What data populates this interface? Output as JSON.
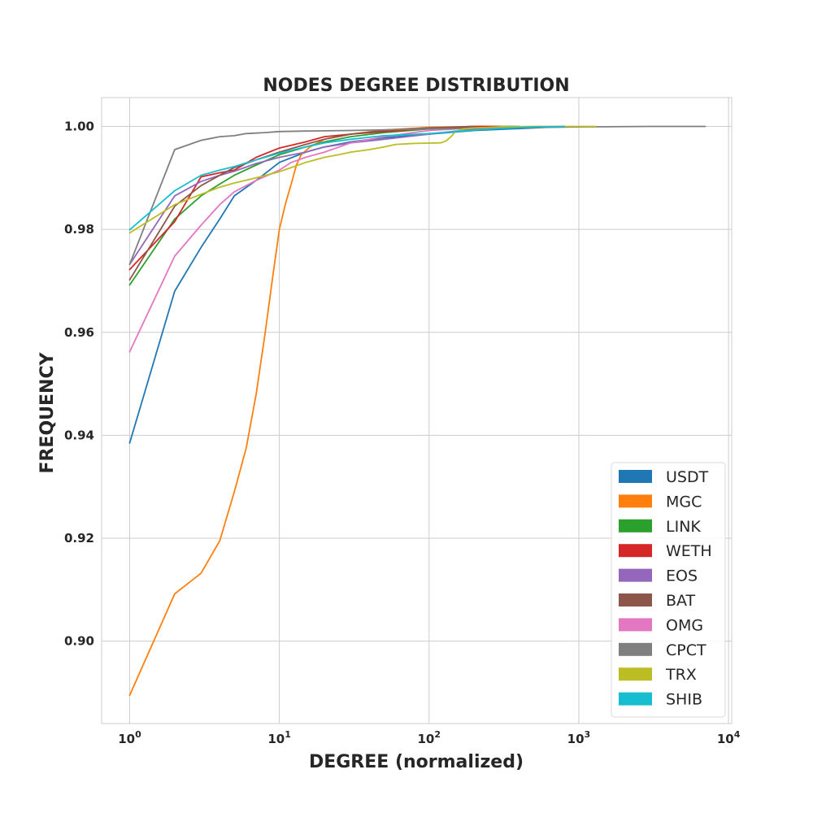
{
  "chart_data": {
    "type": "line",
    "title": "NODES DEGREE DISTRIBUTION",
    "xlabel": "DEGREE (normalized)",
    "ylabel": "FREQUENCY",
    "xscale": "log",
    "xlim": [
      0.65,
      10500
    ],
    "ylim": [
      0.884,
      1.0056
    ],
    "xticks": [
      1,
      10,
      100,
      1000,
      10000
    ],
    "xtick_labels": [
      {
        "base": "10",
        "exp": "0"
      },
      {
        "base": "10",
        "exp": "1"
      },
      {
        "base": "10",
        "exp": "2"
      },
      {
        "base": "10",
        "exp": "3"
      },
      {
        "base": "10",
        "exp": "4"
      }
    ],
    "yticks": [
      0.9,
      0.92,
      0.94,
      0.96,
      0.98,
      1.0
    ],
    "ytick_labels": [
      "0.90",
      "0.92",
      "0.94",
      "0.96",
      "0.98",
      "1.00"
    ],
    "grid": true,
    "legend_position": "lower-right",
    "series": [
      {
        "name": "USDT",
        "color": "#1f77b4",
        "x": [
          1,
          2,
          3,
          4,
          5,
          7,
          10,
          15,
          20,
          30,
          50,
          100,
          200,
          500,
          800
        ],
        "y": [
          0.9385,
          0.968,
          0.9765,
          0.982,
          0.9865,
          0.9895,
          0.993,
          0.995,
          0.996,
          0.997,
          0.9978,
          0.9985,
          0.9992,
          0.9997,
          1.0
        ]
      },
      {
        "name": "MGC",
        "color": "#ff7f0e",
        "x": [
          1,
          2,
          3,
          4,
          5,
          6,
          7,
          8,
          9,
          10,
          11,
          12,
          13,
          14,
          16,
          20,
          30,
          50,
          100,
          200,
          400
        ],
        "y": [
          0.8895,
          0.9092,
          0.9132,
          0.9195,
          0.929,
          0.9375,
          0.948,
          0.9595,
          0.9705,
          0.98,
          0.985,
          0.9888,
          0.9925,
          0.9945,
          0.996,
          0.9975,
          0.9985,
          0.9993,
          0.9998,
          1.0,
          1.0
        ]
      },
      {
        "name": "LINK",
        "color": "#2ca02c",
        "x": [
          1,
          2,
          3,
          4,
          5,
          7,
          10,
          15,
          20,
          30,
          50,
          100,
          200,
          400
        ],
        "y": [
          0.9692,
          0.982,
          0.9865,
          0.9888,
          0.9905,
          0.9925,
          0.9945,
          0.996,
          0.997,
          0.998,
          0.9988,
          0.9995,
          0.9999,
          1.0
        ]
      },
      {
        "name": "WETH",
        "color": "#d62728",
        "x": [
          1,
          2,
          3,
          4,
          5,
          7,
          10,
          15,
          20,
          30,
          50,
          100,
          200,
          300
        ],
        "y": [
          0.9722,
          0.9815,
          0.9902,
          0.991,
          0.9915,
          0.994,
          0.9958,
          0.997,
          0.998,
          0.9985,
          0.999,
          0.9996,
          1.0,
          1.0
        ]
      },
      {
        "name": "EOS",
        "color": "#9467bd",
        "x": [
          1,
          2,
          3,
          4,
          5,
          7,
          10,
          15,
          20,
          30,
          50,
          100,
          200,
          300
        ],
        "y": [
          0.9732,
          0.9865,
          0.9893,
          0.9905,
          0.9913,
          0.9928,
          0.994,
          0.995,
          0.996,
          0.9968,
          0.9975,
          0.9985,
          0.9995,
          1.0
        ]
      },
      {
        "name": "BAT",
        "color": "#8c564b",
        "x": [
          1,
          2,
          3,
          4,
          5,
          7,
          10,
          15,
          20,
          30,
          50,
          100,
          200
        ],
        "y": [
          0.9702,
          0.9845,
          0.9885,
          0.9905,
          0.992,
          0.9935,
          0.995,
          0.9965,
          0.9975,
          0.9985,
          0.9992,
          0.9997,
          1.0
        ]
      },
      {
        "name": "OMG",
        "color": "#e377c2",
        "x": [
          1,
          2,
          3,
          4,
          5,
          7,
          10,
          12,
          15,
          20,
          30,
          50,
          100,
          200,
          400
        ],
        "y": [
          0.9562,
          0.9748,
          0.9808,
          0.9848,
          0.9873,
          0.9895,
          0.9915,
          0.993,
          0.994,
          0.995,
          0.9968,
          0.998,
          0.9992,
          0.9997,
          1.0
        ]
      },
      {
        "name": "CPCT",
        "color": "#7f7f7f",
        "x": [
          1,
          2,
          3,
          4,
          5,
          6,
          8,
          10,
          15,
          30,
          100,
          300,
          1000,
          3000,
          7000
        ],
        "y": [
          0.9732,
          0.9955,
          0.9973,
          0.998,
          0.9982,
          0.9986,
          0.9988,
          0.999,
          0.9991,
          0.9992,
          0.9995,
          0.9997,
          0.9999,
          1.0,
          1.0
        ]
      },
      {
        "name": "TRX",
        "color": "#bcbd22",
        "x": [
          1,
          2,
          3,
          4,
          5,
          7,
          10,
          12,
          15,
          20,
          25,
          30,
          40,
          50,
          60,
          80,
          120,
          130,
          140,
          150,
          170,
          200,
          300,
          500,
          1000,
          1300
        ],
        "y": [
          0.9793,
          0.9848,
          0.9868,
          0.9882,
          0.989,
          0.99,
          0.9912,
          0.992,
          0.993,
          0.994,
          0.9945,
          0.995,
          0.9955,
          0.996,
          0.9965,
          0.9967,
          0.9968,
          0.9972,
          0.998,
          0.999,
          0.9995,
          0.9997,
          0.9999,
          1.0,
          1.0,
          1.0
        ]
      },
      {
        "name": "SHIB",
        "color": "#17becf",
        "x": [
          1,
          2,
          3,
          4,
          5,
          7,
          10,
          15,
          20,
          30,
          50,
          100,
          150,
          200,
          300,
          500,
          800
        ],
        "y": [
          0.9799,
          0.9875,
          0.9905,
          0.9915,
          0.9922,
          0.9935,
          0.9948,
          0.996,
          0.9968,
          0.9975,
          0.9982,
          0.9986,
          0.999,
          0.9993,
          0.9996,
          0.9999,
          1.0
        ]
      }
    ]
  }
}
